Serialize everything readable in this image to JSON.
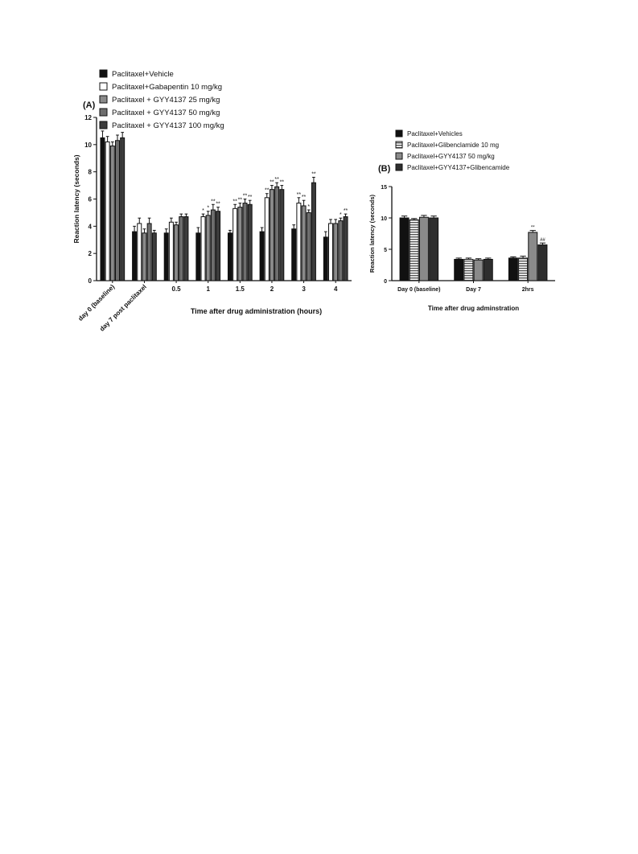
{
  "chart_data": [
    {
      "type": "bar",
      "panel_label": "(A)",
      "y_label": "Reaction latency (seconds)",
      "x_label": "Time after drug administration (hours)",
      "categories": [
        "day 0 (baseline)",
        "day 7 post paclitaxel",
        "0.5",
        "1",
        "1.5",
        "2",
        "3",
        "4"
      ],
      "ylim": [
        0,
        12
      ],
      "yticks": [
        0,
        2,
        4,
        6,
        8,
        10,
        12
      ],
      "series": [
        {
          "name": "Paclitaxel+Vehicle",
          "color": "#111111",
          "values": [
            10.5,
            3.6,
            3.5,
            3.5,
            3.5,
            3.6,
            3.8,
            3.2
          ],
          "errors": [
            0.5,
            0.4,
            0.3,
            0.4,
            0.2,
            0.3,
            0.3,
            0.4
          ],
          "annotations": [
            null,
            null,
            null,
            null,
            null,
            null,
            null,
            null
          ]
        },
        {
          "name": "Paclitaxel+Gabapentin 10 mg/kg",
          "color": "#ffffff",
          "values": [
            10.2,
            4.2,
            4.3,
            4.7,
            5.3,
            6.1,
            5.7,
            4.2
          ],
          "errors": [
            0.4,
            0.4,
            0.3,
            0.2,
            0.3,
            0.3,
            0.4,
            0.3
          ],
          "annotations": [
            null,
            null,
            null,
            "*",
            "**",
            "**",
            "**",
            null
          ]
        },
        {
          "name": "Paclitaxel + GYY4137 25 mg/kg",
          "color": "#8a8a8a",
          "values": [
            9.9,
            3.5,
            4.1,
            4.8,
            5.4,
            6.7,
            5.5,
            4.2
          ],
          "errors": [
            0.3,
            0.3,
            0.2,
            0.3,
            0.3,
            0.3,
            0.4,
            0.3
          ],
          "annotations": [
            null,
            null,
            null,
            "*",
            "**",
            "**",
            "**",
            null
          ]
        },
        {
          "name": "Paclitaxel + GYY4137 50 mg/kg",
          "color": "#6e6e6e",
          "values": [
            10.3,
            4.2,
            4.7,
            5.2,
            5.7,
            6.9,
            5.0,
            4.4
          ],
          "errors": [
            0.4,
            0.4,
            0.2,
            0.4,
            0.3,
            0.3,
            0.2,
            0.2
          ],
          "annotations": [
            null,
            null,
            null,
            "**",
            "**",
            "**",
            "*",
            "*"
          ]
        },
        {
          "name": "Paclitaxel + GYY4137 100 mg/kg",
          "color": "#3c3c3c",
          "values": [
            10.5,
            3.5,
            4.7,
            5.1,
            5.6,
            6.7,
            7.2,
            4.7
          ],
          "errors": [
            0.4,
            0.2,
            0.2,
            0.3,
            0.3,
            0.3,
            0.4,
            0.2
          ],
          "annotations": [
            null,
            null,
            null,
            "**",
            "**",
            "**",
            "**",
            "**"
          ]
        }
      ]
    },
    {
      "type": "bar",
      "panel_label": "(B)",
      "y_label": "Reaction latency (seconds)",
      "x_label": "Time after drug adminstration",
      "categories": [
        "Day 0 (baseline)",
        "Day 7",
        "2hrs"
      ],
      "ylim": [
        0,
        15
      ],
      "yticks": [
        0,
        5,
        10,
        15
      ],
      "series": [
        {
          "name": "Paclitaxel+Vehicles",
          "color": "#111111",
          "values": [
            10.0,
            3.4,
            3.6
          ],
          "errors": [
            0.3,
            0.2,
            0.2
          ],
          "annotations": [
            null,
            null,
            null
          ]
        },
        {
          "name": "Paclitaxel+Glibenclamide 10 mg",
          "color": "#bdbdbd",
          "hatch": "horizontal",
          "values": [
            9.7,
            3.4,
            3.6
          ],
          "errors": [
            0.2,
            0.2,
            0.3
          ],
          "annotations": [
            null,
            null,
            null
          ]
        },
        {
          "name": "Paclitaxel+GYY4137 50 mg/kg",
          "color": "#8a8a8a",
          "values": [
            10.1,
            3.3,
            7.7
          ],
          "errors": [
            0.3,
            0.2,
            0.3
          ],
          "annotations": [
            null,
            null,
            "**"
          ]
        },
        {
          "name": "Paclitaxel+GYY4137+Glibencamide",
          "color": "#2e2e2e",
          "values": [
            10.0,
            3.4,
            5.7
          ],
          "errors": [
            0.3,
            0.2,
            0.3
          ],
          "annotations": [
            null,
            null,
            "##"
          ]
        }
      ]
    }
  ]
}
